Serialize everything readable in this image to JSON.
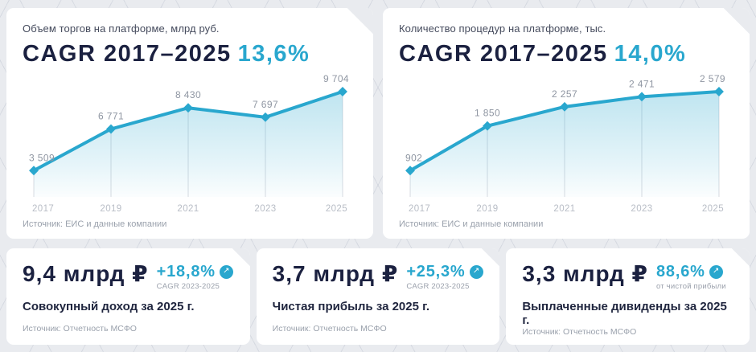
{
  "colors": {
    "accent": "#29A7CE",
    "navy": "#1B2140",
    "page_bg": "#E9EBEF"
  },
  "icons": {
    "arrow_up_right": "↗"
  },
  "chart_data": [
    {
      "type": "area",
      "title": "Объем торгов на платформе, млрд руб.",
      "subtitle_left": "CAGR 2017–2025",
      "subtitle_value": "13,6%",
      "categories": [
        "2017",
        "2019",
        "2021",
        "2023",
        "2025"
      ],
      "values": [
        3509,
        6771,
        8430,
        7697,
        9704
      ],
      "point_labels": [
        "3 509",
        "6 771",
        "8 430",
        "7 697",
        "9 704"
      ],
      "source": "Источник: ЕИС и данные компании",
      "line_color": "#29A7CE",
      "xlabel": "",
      "ylabel": "",
      "grid": "vertical-drop-lines",
      "legend": "none"
    },
    {
      "type": "area",
      "title": "Количество процедур на платформе, тыс.",
      "subtitle_left": "CAGR 2017–2025",
      "subtitle_value": "14,0%",
      "categories": [
        "2017",
        "2019",
        "2021",
        "2023",
        "2025"
      ],
      "values": [
        902,
        1850,
        2257,
        2471,
        2579
      ],
      "point_labels": [
        "902",
        "1 850",
        "2 257",
        "2 471",
        "2 579"
      ],
      "source": "Источник: ЕИС и данные компании",
      "line_color": "#29A7CE",
      "xlabel": "",
      "ylabel": "",
      "grid": "vertical-drop-lines",
      "legend": "none"
    }
  ],
  "kpis": [
    {
      "value": "9,4 млрд ₽",
      "percent": "+18,8%",
      "percent_note": "CAGR 2023-2025",
      "description": "Совокупный доход за 2025 г.",
      "source": "Источник: Отчетность МСФО"
    },
    {
      "value": "3,7 млрд ₽",
      "percent": "+25,3%",
      "percent_note": "CAGR 2023-2025",
      "description": "Чистая прибыль за 2025 г.",
      "source": "Источник: Отчетность МСФО"
    },
    {
      "value": "3,3 млрд ₽",
      "percent": "88,6%",
      "percent_note": "от чистой прибыли",
      "description": "Выплаченные дивиденды за 2025 г.",
      "source": "Источник: Отчетность МСФО"
    }
  ]
}
